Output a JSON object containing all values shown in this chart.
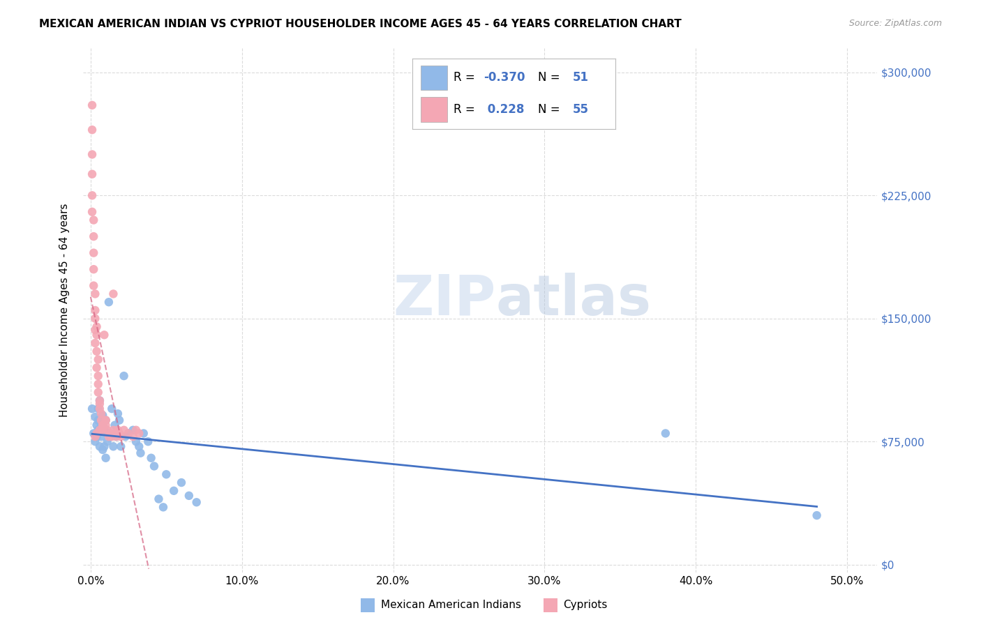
{
  "title": "MEXICAN AMERICAN INDIAN VS CYPRIOT HOUSEHOLDER INCOME AGES 45 - 64 YEARS CORRELATION CHART",
  "source": "Source: ZipAtlas.com",
  "ylabel": "Householder Income Ages 45 - 64 years",
  "xlabel_ticks": [
    "0.0%",
    "10.0%",
    "20.0%",
    "30.0%",
    "40.0%",
    "50.0%"
  ],
  "xlabel_vals": [
    0.0,
    0.1,
    0.2,
    0.3,
    0.4,
    0.5
  ],
  "ylabel_ticks": [
    "$0",
    "$75,000",
    "$150,000",
    "$225,000",
    "$300,000"
  ],
  "ylabel_vals": [
    0,
    75000,
    150000,
    225000,
    300000
  ],
  "xlim": [
    -0.005,
    0.52
  ],
  "ylim": [
    -5000,
    315000
  ],
  "blue_R": -0.37,
  "blue_N": 51,
  "pink_R": 0.228,
  "pink_N": 55,
  "blue_color": "#91b9e8",
  "pink_color": "#f4a7b4",
  "blue_line_color": "#4472c4",
  "pink_trend_color": "#d46080",
  "watermark_zip": "ZIP",
  "watermark_atlas": "atlas",
  "blue_scatter_x": [
    0.001,
    0.002,
    0.003,
    0.003,
    0.004,
    0.004,
    0.005,
    0.005,
    0.005,
    0.006,
    0.006,
    0.007,
    0.007,
    0.008,
    0.008,
    0.009,
    0.009,
    0.01,
    0.01,
    0.011,
    0.011,
    0.012,
    0.013,
    0.014,
    0.015,
    0.016,
    0.016,
    0.017,
    0.018,
    0.019,
    0.02,
    0.022,
    0.023,
    0.025,
    0.028,
    0.03,
    0.032,
    0.033,
    0.035,
    0.038,
    0.04,
    0.042,
    0.045,
    0.048,
    0.05,
    0.055,
    0.06,
    0.065,
    0.07,
    0.38,
    0.48
  ],
  "blue_scatter_y": [
    95000,
    80000,
    90000,
    75000,
    85000,
    78000,
    82000,
    88000,
    95000,
    100000,
    72000,
    85000,
    78000,
    91000,
    70000,
    83000,
    72000,
    88000,
    65000,
    80000,
    75000,
    160000,
    78000,
    95000,
    72000,
    85000,
    80000,
    78000,
    92000,
    88000,
    72000,
    115000,
    78000,
    80000,
    82000,
    75000,
    72000,
    68000,
    80000,
    75000,
    65000,
    60000,
    40000,
    35000,
    55000,
    45000,
    50000,
    42000,
    38000,
    80000,
    30000
  ],
  "pink_scatter_x": [
    0.001,
    0.001,
    0.001,
    0.001,
    0.001,
    0.001,
    0.002,
    0.002,
    0.002,
    0.002,
    0.002,
    0.003,
    0.003,
    0.003,
    0.003,
    0.003,
    0.004,
    0.004,
    0.004,
    0.004,
    0.005,
    0.005,
    0.005,
    0.005,
    0.006,
    0.006,
    0.006,
    0.007,
    0.007,
    0.008,
    0.008,
    0.009,
    0.01,
    0.01,
    0.011,
    0.012,
    0.013,
    0.014,
    0.015,
    0.016,
    0.017,
    0.018,
    0.019,
    0.02,
    0.022,
    0.025,
    0.028,
    0.03,
    0.032,
    0.015,
    0.01,
    0.008,
    0.006,
    0.004,
    0.003
  ],
  "pink_scatter_y": [
    280000,
    265000,
    250000,
    238000,
    225000,
    215000,
    210000,
    200000,
    190000,
    180000,
    170000,
    165000,
    155000,
    150000,
    143000,
    135000,
    130000,
    120000,
    145000,
    140000,
    125000,
    115000,
    110000,
    105000,
    100000,
    98000,
    95000,
    92000,
    88000,
    85000,
    82000,
    140000,
    88000,
    85000,
    82000,
    78000,
    80000,
    78000,
    82000,
    80000,
    78000,
    82000,
    80000,
    78000,
    82000,
    80000,
    78000,
    82000,
    80000,
    165000,
    88000,
    85000,
    82000,
    80000,
    78000
  ]
}
